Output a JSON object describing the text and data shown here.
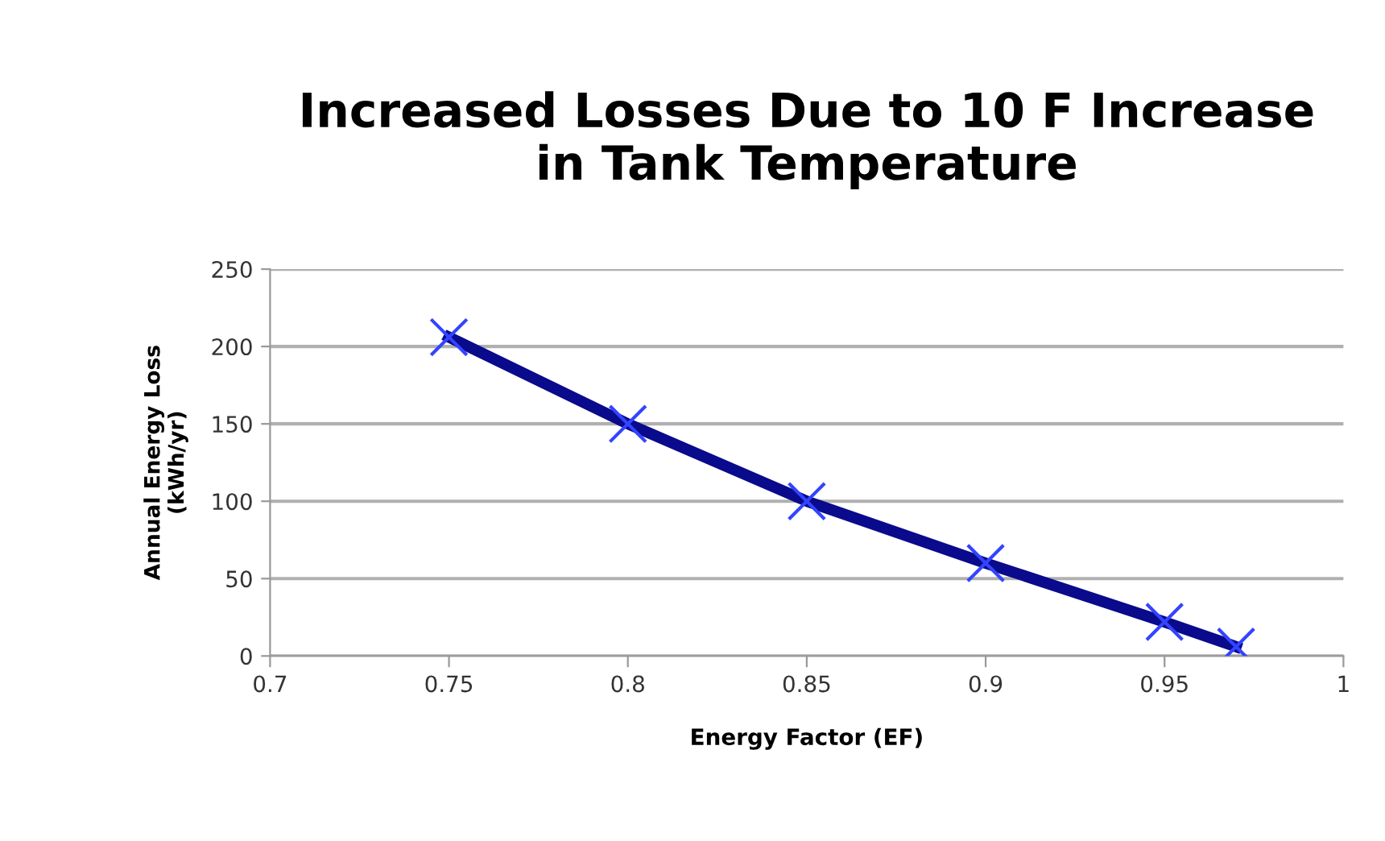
{
  "chart_data": {
    "type": "line",
    "title": "Increased Losses Due to 10 F Increase\nin Tank Temperature",
    "xlabel": "Energy Factor (EF)",
    "ylabel": "Annual Energy Loss\n(kWh/yr)",
    "x": [
      0.75,
      0.8,
      0.85,
      0.9,
      0.95,
      0.97
    ],
    "series": [
      {
        "color": "#0a0a8c",
        "values": [
          206,
          150,
          100,
          60,
          22,
          6
        ]
      }
    ],
    "xlim": [
      0.7,
      1
    ],
    "xticks": [
      0.7,
      0.75,
      0.8,
      0.85,
      0.9,
      0.95,
      1
    ],
    "ylim": [
      0,
      250
    ],
    "yticks": [
      0,
      50,
      100,
      150,
      200,
      250
    ],
    "grid": "y",
    "marker": "cross",
    "line_style": "solid"
  }
}
